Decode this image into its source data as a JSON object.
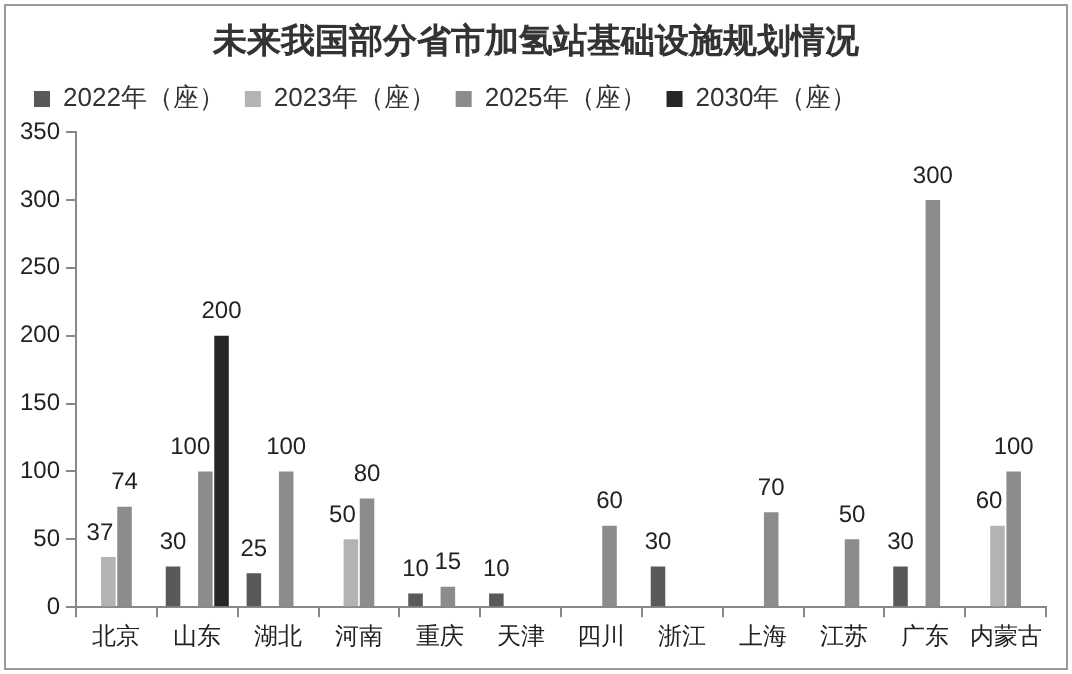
{
  "chart_data": {
    "type": "bar",
    "title": "未来我国部分省市加氢站基础设施规划情况",
    "categories": [
      "北京",
      "山东",
      "湖北",
      "河南",
      "重庆",
      "天津",
      "四川",
      "浙江",
      "上海",
      "江苏",
      "广东",
      "内蒙古"
    ],
    "series": [
      {
        "name": "2022年（座）",
        "color": "#595959",
        "values": [
          null,
          30,
          25,
          null,
          10,
          10,
          null,
          30,
          null,
          null,
          30,
          null
        ]
      },
      {
        "name": "2023年（座）",
        "color": "#b3b3b3",
        "values": [
          37,
          null,
          null,
          50,
          null,
          null,
          null,
          null,
          null,
          null,
          null,
          60
        ]
      },
      {
        "name": "2025年（座）",
        "color": "#8c8c8c",
        "values": [
          74,
          100,
          100,
          80,
          15,
          null,
          60,
          null,
          70,
          50,
          300,
          100
        ]
      },
      {
        "name": "2030年（座）",
        "color": "#262626",
        "values": [
          null,
          200,
          null,
          null,
          null,
          null,
          null,
          null,
          null,
          null,
          null,
          null
        ]
      }
    ],
    "ylim": [
      0,
      350
    ],
    "yticks": [
      0,
      50,
      100,
      150,
      200,
      250,
      300,
      350
    ],
    "grid": false,
    "legend": "top",
    "data_labels": true
  }
}
